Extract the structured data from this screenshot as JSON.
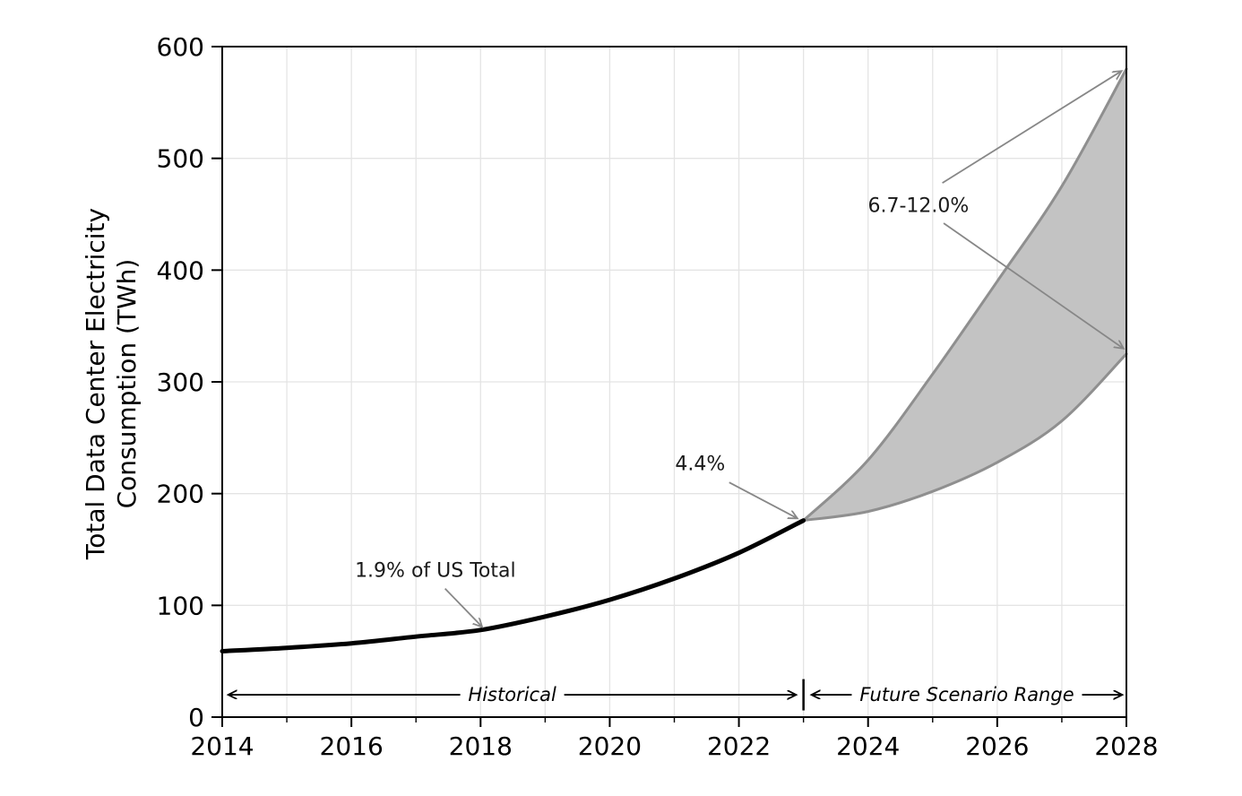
{
  "chart_data": {
    "type": "line",
    "title": "",
    "xlabel": "",
    "ylabel_lines": [
      "Total Data Center Electricity",
      "Consumption (TWh)"
    ],
    "xlim": [
      2014,
      2028
    ],
    "ylim": [
      0,
      600
    ],
    "x_major_ticks": [
      2014,
      2016,
      2018,
      2020,
      2022,
      2024,
      2026,
      2028
    ],
    "x_minor_ticks": [
      2015,
      2017,
      2019,
      2021,
      2023,
      2025,
      2027
    ],
    "y_major_ticks": [
      0,
      100,
      200,
      300,
      400,
      500,
      600
    ],
    "grid_vertical_years": [
      2015,
      2016,
      2017,
      2018,
      2019,
      2020,
      2021,
      2022,
      2023,
      2024,
      2025,
      2026,
      2027
    ],
    "grid_horizontal_values": [
      100,
      200,
      300,
      400,
      500
    ],
    "grid_on": true,
    "legend": "none",
    "series": [
      {
        "name": "historical",
        "x": [
          2014,
          2015,
          2016,
          2017,
          2018,
          2019,
          2020,
          2021,
          2022,
          2023
        ],
        "y": [
          59,
          62,
          66,
          72,
          78,
          90,
          105,
          124,
          147,
          176
        ],
        "color": "#000000",
        "width": 5
      },
      {
        "name": "future-upper-scenario",
        "x": [
          2023,
          2024,
          2025,
          2026,
          2027,
          2028
        ],
        "y": [
          176,
          230,
          307,
          390,
          475,
          580
        ],
        "color": "#8f8f8f",
        "width": 3
      },
      {
        "name": "future-lower-scenario",
        "x": [
          2023,
          2024,
          2025,
          2026,
          2027,
          2028
        ],
        "y": [
          176,
          184,
          202,
          228,
          265,
          325
        ],
        "color": "#8f8f8f",
        "width": 3
      }
    ],
    "band_fill": "#c3c3c3",
    "annotations": [
      {
        "id": "us-total",
        "text": "1.9% of US Total",
        "center": [
          2017.3,
          131
        ],
        "arrows": [
          [
            [
              2017.45,
              115
            ],
            [
              2018.02,
              81
            ]
          ]
        ]
      },
      {
        "id": "pct-2023",
        "text": "4.4%",
        "center": [
          2021.4,
          226
        ],
        "arrows": [
          [
            [
              2021.85,
              210
            ],
            [
              2022.9,
              178
            ]
          ]
        ]
      },
      {
        "id": "range-2028",
        "text": "6.7-12.0%",
        "center": [
          2024.78,
          457
        ],
        "arrows": [
          [
            [
              2025.15,
              478
            ],
            [
              2027.92,
              578
            ]
          ],
          [
            [
              2025.17,
              442
            ],
            [
              2027.95,
              330
            ]
          ]
        ]
      }
    ],
    "spans": [
      {
        "id": "historical-span",
        "text": "Historical",
        "from": 2014.1,
        "to": 2022.88,
        "y": 20
      },
      {
        "id": "future-span",
        "text": "Future Scenario Range",
        "from": 2023.13,
        "to": 2027.93,
        "y": 20
      }
    ],
    "divider": {
      "x": 2023,
      "y_from": 6,
      "y_to": 34
    },
    "colors": {
      "grid": "#e4e4e4",
      "spine": "#000000",
      "annotation_arrow": "#878787",
      "span_arrow": "#000000",
      "text": "#000000"
    }
  }
}
